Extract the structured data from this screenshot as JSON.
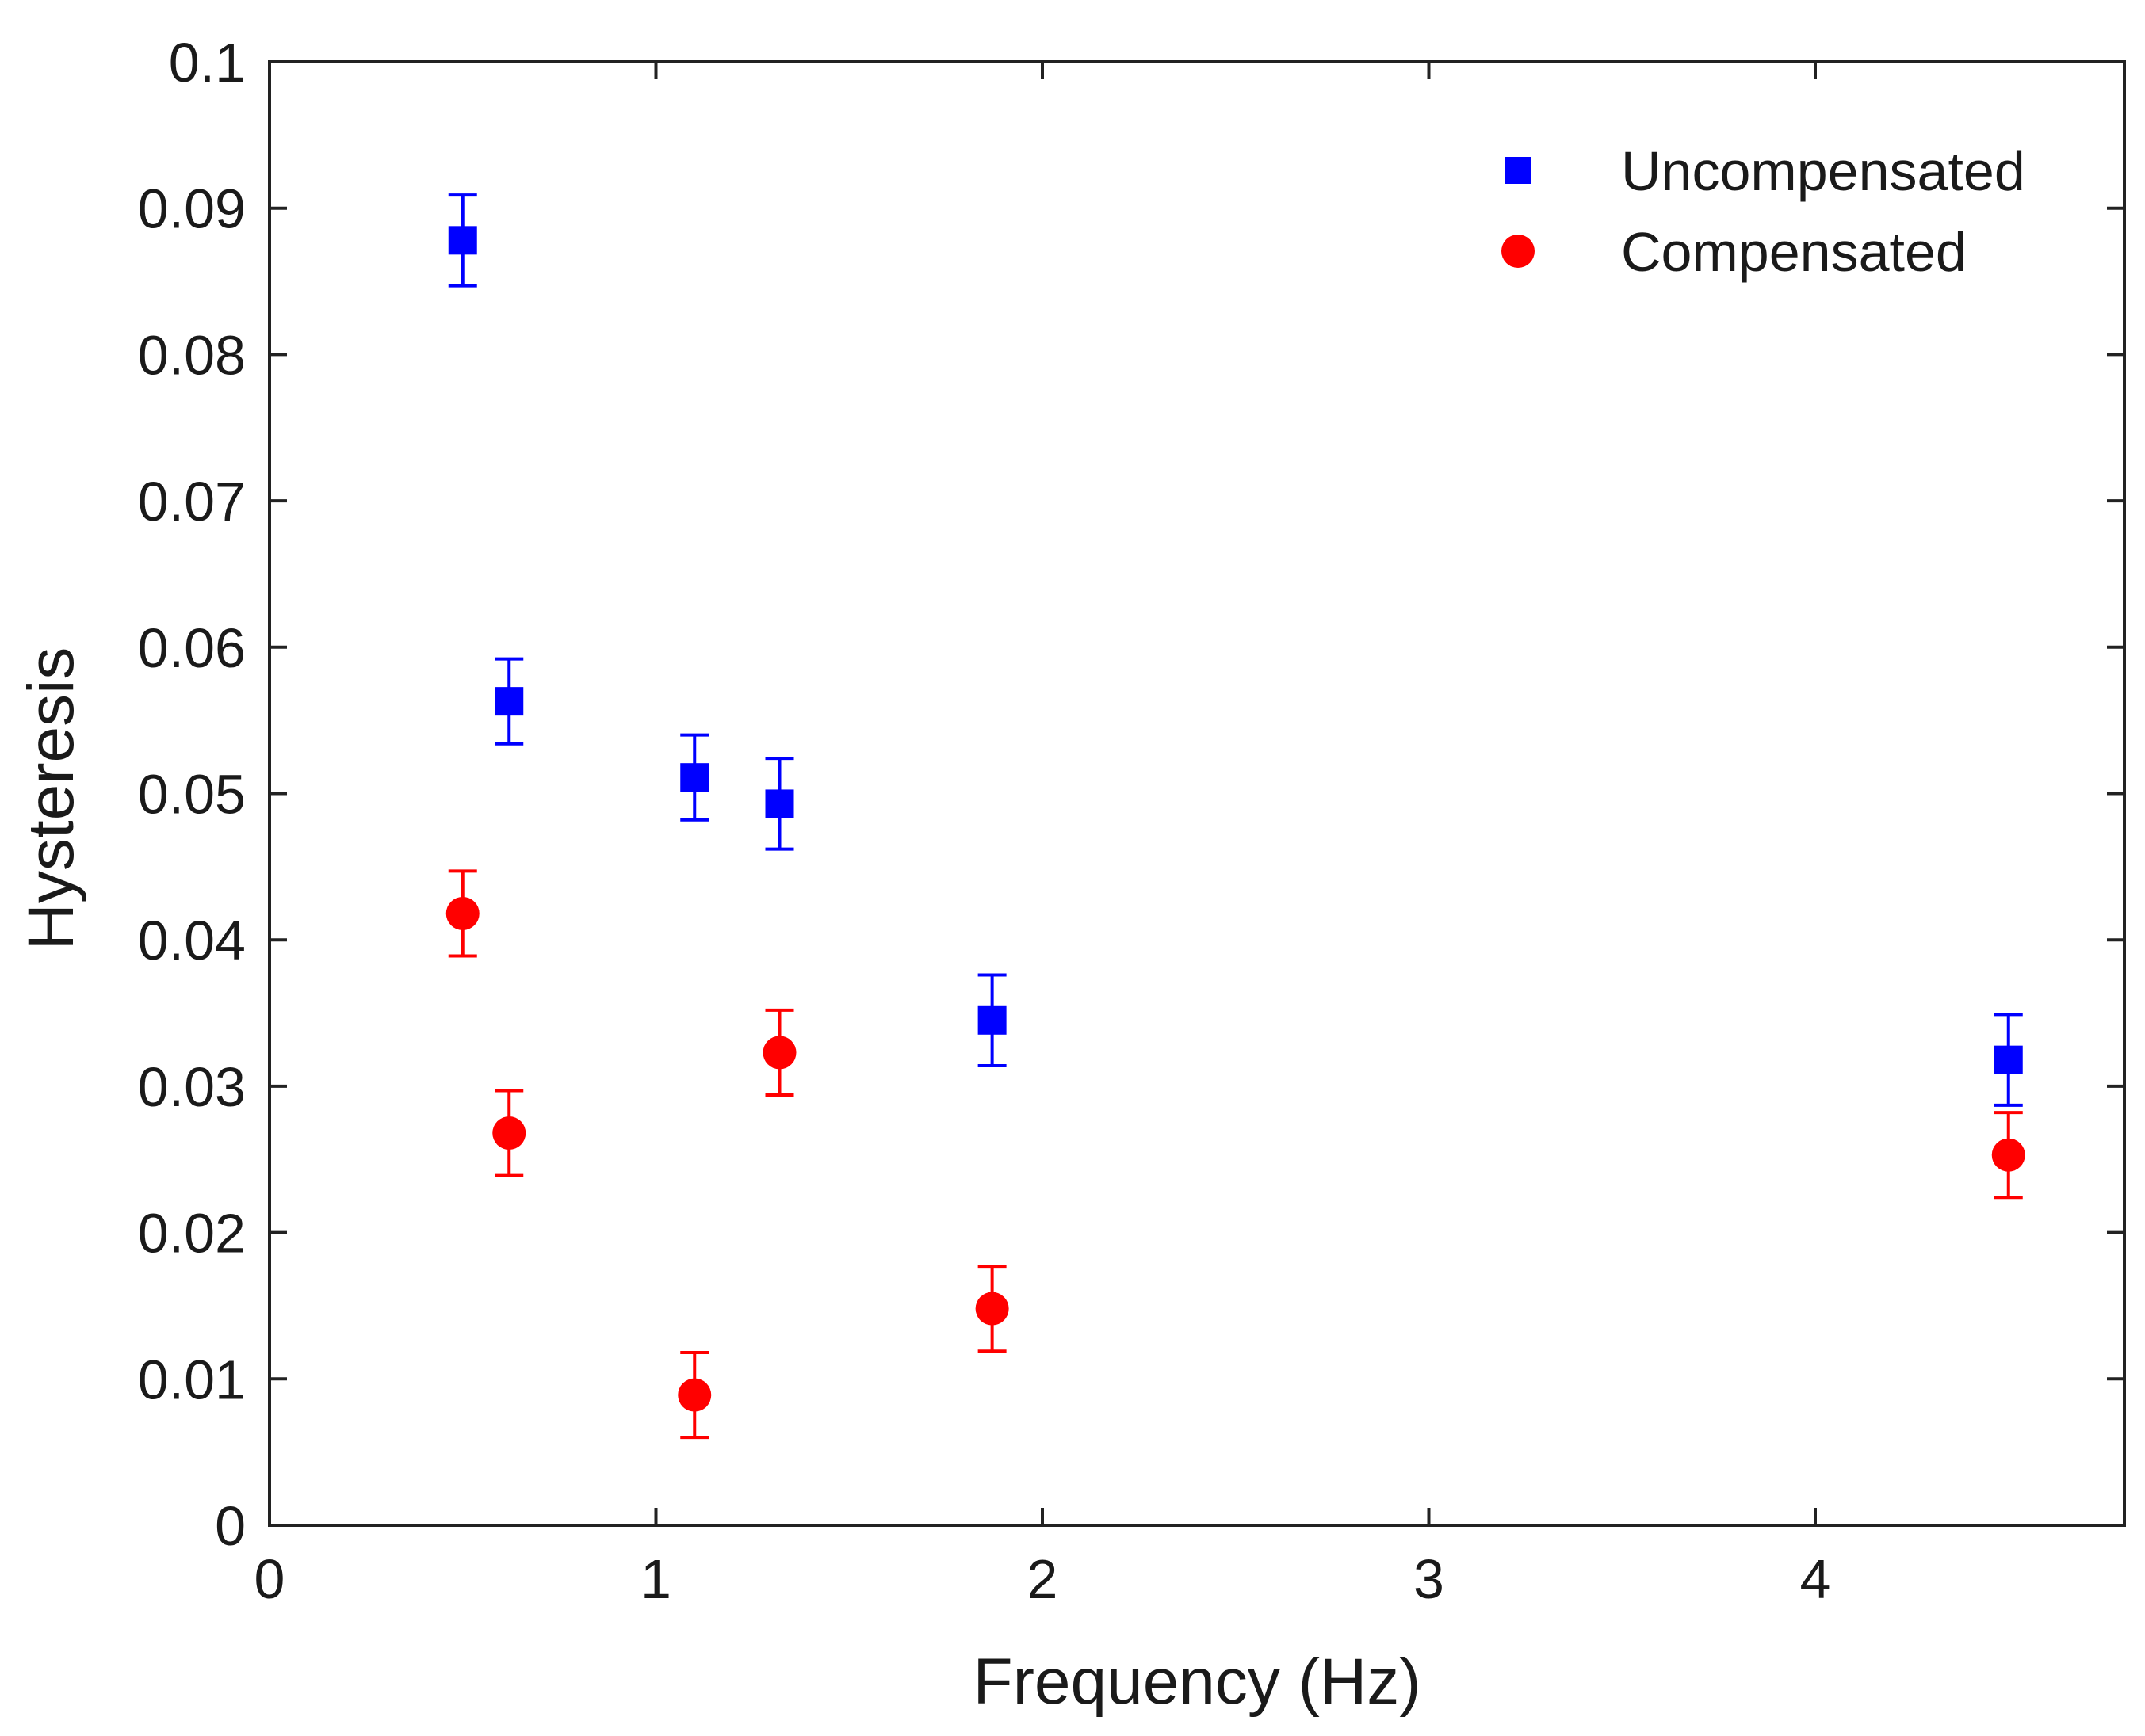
{
  "chart_data": {
    "type": "scatter",
    "title": "",
    "xlabel": "Frequency (Hz)",
    "ylabel": "Hysteresis",
    "xlim": [
      0,
      4.8
    ],
    "ylim": [
      0,
      0.1
    ],
    "x_ticks": [
      0,
      1,
      2,
      3,
      4
    ],
    "x_tick_labels": [
      "0",
      "1",
      "2",
      "3",
      "4"
    ],
    "y_ticks": [
      0,
      0.01,
      0.02,
      0.03,
      0.04,
      0.05,
      0.06,
      0.07,
      0.08,
      0.09,
      0.1
    ],
    "y_tick_labels": [
      "0",
      "0.01",
      "0.02",
      "0.03",
      "0.04",
      "0.05",
      "0.06",
      "0.07",
      "0.08",
      "0.09",
      "0.1"
    ],
    "grid": false,
    "legend_position": "top-right",
    "series": [
      {
        "name": "Uncompensated",
        "marker": "square",
        "color": "#0000ff",
        "x": [
          0.5,
          0.62,
          1.1,
          1.32,
          1.87,
          4.5
        ],
        "y": [
          0.0878,
          0.0563,
          0.0511,
          0.0493,
          0.0345,
          0.0318
        ],
        "error": [
          0.0031,
          0.0029,
          0.0029,
          0.0031,
          0.0031,
          0.0031
        ]
      },
      {
        "name": "Compensated",
        "marker": "circle",
        "color": "#ff0000",
        "x": [
          0.5,
          0.62,
          1.1,
          1.32,
          1.87,
          4.5
        ],
        "y": [
          0.0418,
          0.0268,
          0.0089,
          0.0323,
          0.0148,
          0.0253
        ],
        "error": [
          0.0029,
          0.0029,
          0.0029,
          0.0029,
          0.0029,
          0.0029
        ]
      }
    ]
  }
}
